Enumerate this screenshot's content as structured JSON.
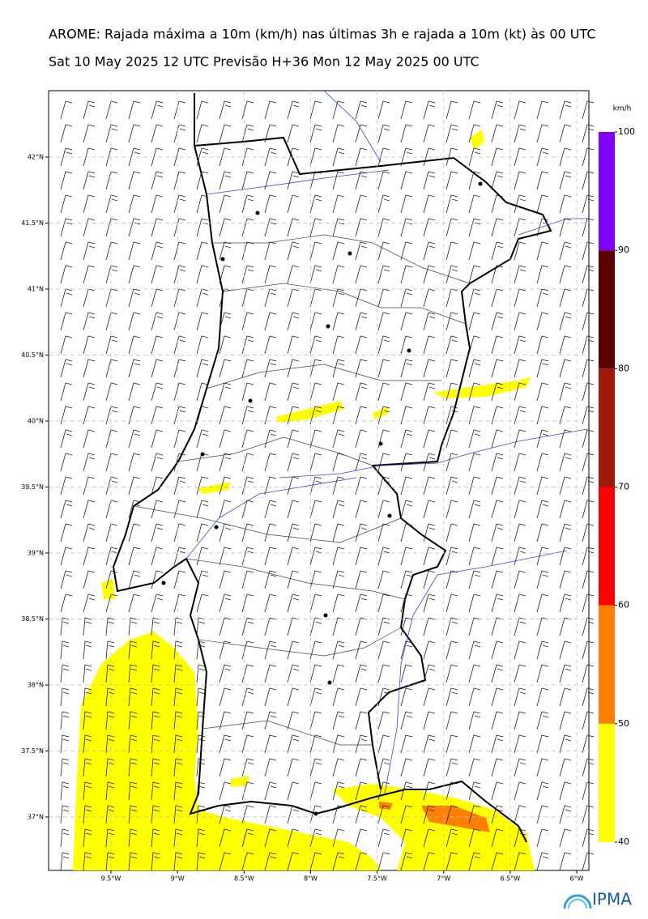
{
  "header": {
    "title": "AROME: Rajada máxima a 10m (km/h) nas últimas 3h e rajada a 10m (kt) às 00 UTC",
    "subtitle": "Sat 10 May 2025 12 UTC Previsão H+36 Mon 12 May 2025 00 UTC"
  },
  "map": {
    "lat_ticks": [
      {
        "value": 42,
        "label": "42°N"
      },
      {
        "value": 41.5,
        "label": "41.5°N"
      },
      {
        "value": 41,
        "label": "41°N"
      },
      {
        "value": 40.5,
        "label": "40.5°N"
      },
      {
        "value": 40,
        "label": "40°N"
      },
      {
        "value": 39.5,
        "label": "39.5°N"
      },
      {
        "value": 39,
        "label": "39°N"
      },
      {
        "value": 38.5,
        "label": "38.5°N"
      },
      {
        "value": 38,
        "label": "38°N"
      },
      {
        "value": 37.5,
        "label": "37.5°N"
      },
      {
        "value": 37,
        "label": "37°N"
      }
    ],
    "lon_ticks": [
      {
        "value": -9.5,
        "label": "9.5°W"
      },
      {
        "value": -9,
        "label": "9°W"
      },
      {
        "value": -8.5,
        "label": "8.5°W"
      },
      {
        "value": -8,
        "label": "8°W"
      },
      {
        "value": -7.5,
        "label": "7.5°W"
      },
      {
        "value": -7,
        "label": "7°W"
      },
      {
        "value": -6.5,
        "label": "6.5°W"
      },
      {
        "value": -6,
        "label": "6°W"
      }
    ]
  },
  "colorbar": {
    "unit": "km/h",
    "ticks": [
      40,
      50,
      60,
      70,
      80,
      90,
      100
    ],
    "colors": [
      "#ffff00",
      "#ff8000",
      "#ff0000",
      "#a01a0a",
      "#5a0000",
      "#8000ff"
    ]
  },
  "logo": "IPMA"
}
